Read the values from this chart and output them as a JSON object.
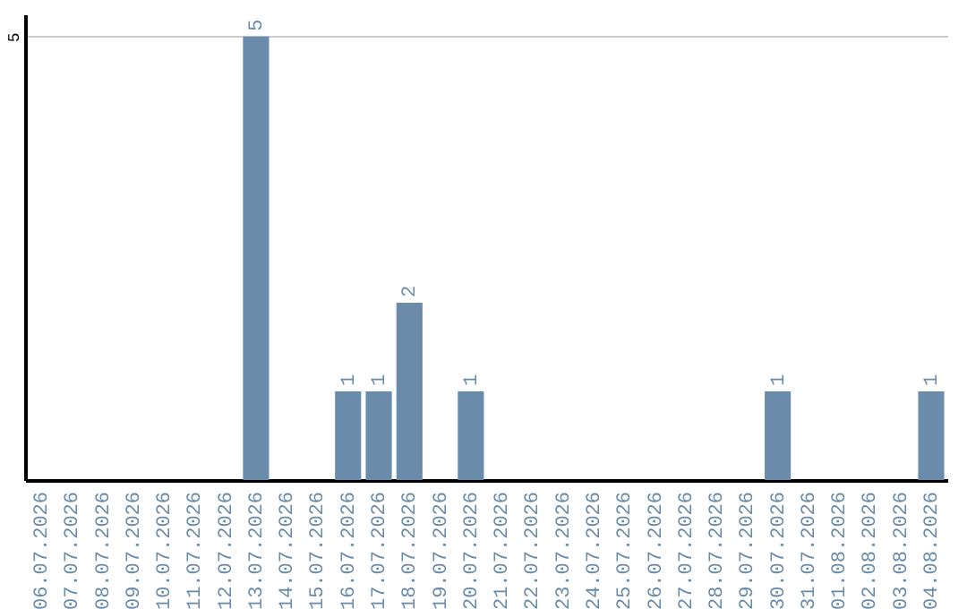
{
  "chart_data": {
    "type": "bar",
    "categories": [
      "06.07.2026",
      "07.07.2026",
      "08.07.2026",
      "09.07.2026",
      "10.07.2026",
      "11.07.2026",
      "12.07.2026",
      "13.07.2026",
      "14.07.2026",
      "15.07.2026",
      "16.07.2026",
      "17.07.2026",
      "18.07.2026",
      "19.07.2026",
      "20.07.2026",
      "21.07.2026",
      "22.07.2026",
      "23.07.2026",
      "24.07.2026",
      "25.07.2026",
      "26.07.2026",
      "27.07.2026",
      "28.07.2026",
      "29.07.2026",
      "30.07.2026",
      "31.07.2026",
      "01.08.2026",
      "02.08.2026",
      "03.08.2026",
      "04.08.2026"
    ],
    "values": [
      0,
      0,
      0,
      0,
      0,
      0,
      0,
      5,
      0,
      0,
      1,
      1,
      2,
      0,
      1,
      0,
      0,
      0,
      0,
      0,
      0,
      0,
      0,
      0,
      1,
      0,
      0,
      0,
      0,
      1
    ],
    "value_labels": [
      null,
      null,
      null,
      null,
      null,
      null,
      null,
      "5",
      null,
      null,
      "1",
      "1",
      "2",
      null,
      "1",
      null,
      null,
      null,
      null,
      null,
      null,
      null,
      null,
      null,
      "1",
      null,
      null,
      null,
      null,
      "1"
    ],
    "color": "#6a8caa",
    "ylim": [
      0,
      5.25
    ],
    "yticks": [
      5
    ],
    "grid": "y"
  }
}
